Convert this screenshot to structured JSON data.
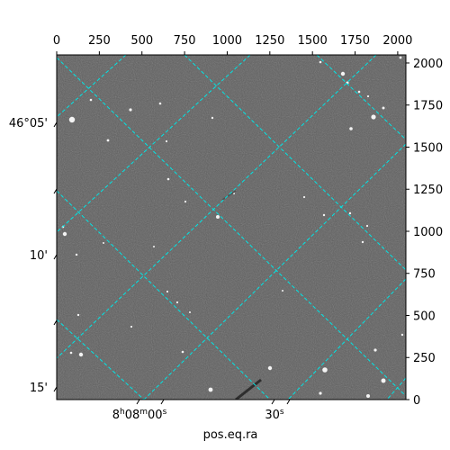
{
  "figure": {
    "xlabel": "pos.eq.ra"
  },
  "chart_data": {
    "type": "heatmap",
    "image": "grayscale astronomical sky image with overlaid cyan dashed RA/Dec coordinate grid",
    "pixel_axes": {
      "x_top": {
        "ticks": [
          0,
          250,
          500,
          750,
          1000,
          1250,
          1500,
          1750,
          2000
        ],
        "range": [
          0,
          2048
        ]
      },
      "y_right": {
        "ticks": [
          0,
          250,
          500,
          750,
          1000,
          1250,
          1500,
          1750,
          2000
        ],
        "range": [
          0,
          2048
        ]
      }
    },
    "world_axes": {
      "ra_bottom": {
        "label": "pos.eq.ra",
        "ticks": [
          "8h08m00s",
          "30s"
        ]
      },
      "dec_left": {
        "ticks": [
          "46°05'",
          "10'",
          "15'"
        ]
      }
    },
    "grid": {
      "visible": true,
      "color": "#00e5e5",
      "style": "dashed"
    },
    "colormap": "gray"
  }
}
